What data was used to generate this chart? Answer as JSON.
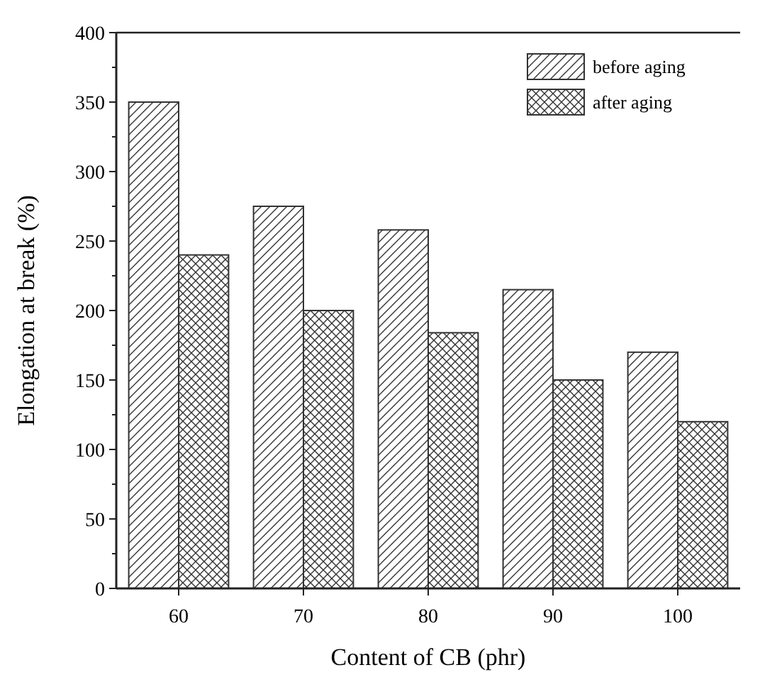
{
  "chart_data": {
    "type": "bar",
    "xlabel": "Content of CB (phr)",
    "ylabel": "Elongation at break (%)",
    "categories": [
      "60",
      "70",
      "80",
      "90",
      "100"
    ],
    "series": [
      {
        "name": "before aging",
        "color": "#333333",
        "values": [
          350,
          275,
          258,
          215,
          170
        ]
      },
      {
        "name": "after aging",
        "color": "#333333",
        "values": [
          240,
          200,
          184,
          150,
          120
        ]
      }
    ],
    "ylim": [
      0,
      400
    ],
    "yticks": [
      0,
      50,
      100,
      150,
      200,
      250,
      300,
      350,
      400
    ],
    "legend": "top right"
  }
}
